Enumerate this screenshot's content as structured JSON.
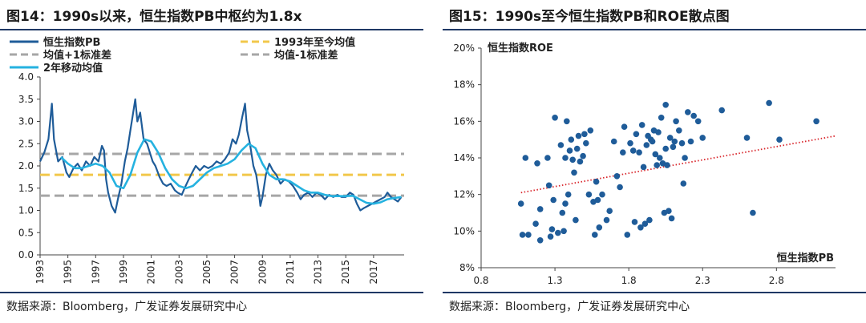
{
  "left": {
    "title": "图14：1990s以来，恒生指数PB中枢约为1.8x",
    "source": "数据来源：Bloomberg，广发证券发展研究中心"
  },
  "right": {
    "title": "图15：1990s至今恒生指数PB和ROE散点图",
    "source": "数据来源：Bloomberg，广发证券发展研究中心"
  },
  "colors": {
    "pb_line": "#1f5c99",
    "avg_line": "#f2c84b",
    "std_lines": "#a6a6a6",
    "ma_line": "#25b2e0",
    "scatter_point": "#1f5c99",
    "trendline": "#d9262c",
    "rule": "#1f3864"
  },
  "chart_data": [
    {
      "type": "line",
      "legend": [
        "恒生指数PB",
        "1993年至今均值",
        "均值+1标准差",
        "均值-1标准差",
        "2年移动均值"
      ],
      "legend_placement": "top-left",
      "ylim": [
        0.0,
        4.0
      ],
      "yticks": [
        "0.0",
        "0.5",
        "1.0",
        "1.5",
        "2.0",
        "2.5",
        "3.0",
        "3.5",
        "4.0"
      ],
      "xlim": [
        1993.0,
        2019.2
      ],
      "xticks": [
        "1993",
        "1995",
        "1997",
        "1999",
        "2001",
        "2003",
        "2005",
        "2007",
        "2009",
        "2011",
        "2013",
        "2015",
        "2017"
      ],
      "grid": false,
      "series": [
        {
          "name": "恒生指数PB",
          "points": [
            [
              1993.0,
              2.1
            ],
            [
              1993.3,
              2.3
            ],
            [
              1993.6,
              2.6
            ],
            [
              1993.85,
              3.4
            ],
            [
              1994.0,
              2.6
            ],
            [
              1994.3,
              2.1
            ],
            [
              1994.6,
              2.2
            ],
            [
              1994.9,
              1.85
            ],
            [
              1995.1,
              1.75
            ],
            [
              1995.4,
              1.95
            ],
            [
              1995.7,
              2.05
            ],
            [
              1996.0,
              1.9
            ],
            [
              1996.3,
              2.1
            ],
            [
              1996.6,
              2.0
            ],
            [
              1996.9,
              2.2
            ],
            [
              1997.2,
              2.1
            ],
            [
              1997.45,
              2.45
            ],
            [
              1997.6,
              2.35
            ],
            [
              1997.75,
              1.7
            ],
            [
              1997.9,
              1.4
            ],
            [
              1998.15,
              1.1
            ],
            [
              1998.4,
              0.95
            ],
            [
              1998.6,
              1.25
            ],
            [
              1998.85,
              1.6
            ],
            [
              1999.1,
              2.1
            ],
            [
              1999.3,
              2.4
            ],
            [
              1999.5,
              2.8
            ],
            [
              1999.7,
              3.2
            ],
            [
              1999.85,
              3.5
            ],
            [
              2000.0,
              3.0
            ],
            [
              2000.2,
              3.2
            ],
            [
              2000.45,
              2.6
            ],
            [
              2000.7,
              2.5
            ],
            [
              2000.9,
              2.3
            ],
            [
              2001.1,
              2.1
            ],
            [
              2001.3,
              2.0
            ],
            [
              2001.6,
              1.75
            ],
            [
              2001.85,
              1.6
            ],
            [
              2002.1,
              1.55
            ],
            [
              2002.4,
              1.6
            ],
            [
              2002.7,
              1.45
            ],
            [
              2002.9,
              1.4
            ],
            [
              2003.2,
              1.35
            ],
            [
              2003.4,
              1.5
            ],
            [
              2003.7,
              1.7
            ],
            [
              2003.95,
              1.85
            ],
            [
              2004.2,
              2.0
            ],
            [
              2004.5,
              1.9
            ],
            [
              2004.8,
              2.0
            ],
            [
              2005.1,
              1.95
            ],
            [
              2005.4,
              2.0
            ],
            [
              2005.7,
              2.1
            ],
            [
              2006.0,
              2.05
            ],
            [
              2006.3,
              2.15
            ],
            [
              2006.6,
              2.3
            ],
            [
              2006.85,
              2.6
            ],
            [
              2007.1,
              2.5
            ],
            [
              2007.3,
              2.7
            ],
            [
              2007.55,
              3.1
            ],
            [
              2007.75,
              3.4
            ],
            [
              2007.9,
              2.8
            ],
            [
              2008.1,
              2.5
            ],
            [
              2008.35,
              2.0
            ],
            [
              2008.55,
              1.8
            ],
            [
              2008.75,
              1.4
            ],
            [
              2008.85,
              1.1
            ],
            [
              2009.0,
              1.3
            ],
            [
              2009.25,
              1.8
            ],
            [
              2009.5,
              2.05
            ],
            [
              2009.75,
              1.9
            ],
            [
              2010.0,
              1.8
            ],
            [
              2010.3,
              1.6
            ],
            [
              2010.6,
              1.7
            ],
            [
              2010.9,
              1.65
            ],
            [
              2011.2,
              1.55
            ],
            [
              2011.5,
              1.4
            ],
            [
              2011.75,
              1.25
            ],
            [
              2012.0,
              1.35
            ],
            [
              2012.3,
              1.4
            ],
            [
              2012.6,
              1.3
            ],
            [
              2012.9,
              1.4
            ],
            [
              2013.2,
              1.35
            ],
            [
              2013.5,
              1.25
            ],
            [
              2013.8,
              1.35
            ],
            [
              2014.1,
              1.3
            ],
            [
              2014.4,
              1.35
            ],
            [
              2014.7,
              1.3
            ],
            [
              2015.0,
              1.3
            ],
            [
              2015.3,
              1.4
            ],
            [
              2015.55,
              1.35
            ],
            [
              2015.8,
              1.15
            ],
            [
              2016.05,
              1.0
            ],
            [
              2016.3,
              1.05
            ],
            [
              2016.6,
              1.1
            ],
            [
              2016.9,
              1.15
            ],
            [
              2017.2,
              1.2
            ],
            [
              2017.5,
              1.25
            ],
            [
              2017.8,
              1.3
            ],
            [
              2018.0,
              1.4
            ],
            [
              2018.25,
              1.3
            ],
            [
              2018.5,
              1.25
            ],
            [
              2018.75,
              1.2
            ],
            [
              2019.0,
              1.3
            ]
          ]
        },
        {
          "name": "1993年至今均值",
          "value": 1.8
        },
        {
          "name": "均值+1标准差",
          "value": 2.27
        },
        {
          "name": "均值-1标准差",
          "value": 1.33
        },
        {
          "name": "2年移动均值",
          "points": [
            [
              1994.5,
              2.2
            ],
            [
              1995.0,
              2.05
            ],
            [
              1995.5,
              1.95
            ],
            [
              1996.0,
              1.95
            ],
            [
              1996.5,
              2.0
            ],
            [
              1997.0,
              2.05
            ],
            [
              1997.5,
              2.0
            ],
            [
              1998.0,
              1.85
            ],
            [
              1998.5,
              1.55
            ],
            [
              1999.0,
              1.5
            ],
            [
              1999.5,
              1.8
            ],
            [
              2000.0,
              2.3
            ],
            [
              2000.5,
              2.6
            ],
            [
              2001.0,
              2.55
            ],
            [
              2001.5,
              2.3
            ],
            [
              2002.0,
              1.95
            ],
            [
              2002.5,
              1.7
            ],
            [
              2003.0,
              1.55
            ],
            [
              2003.5,
              1.5
            ],
            [
              2004.0,
              1.55
            ],
            [
              2004.5,
              1.7
            ],
            [
              2005.0,
              1.85
            ],
            [
              2005.5,
              1.95
            ],
            [
              2006.0,
              2.0
            ],
            [
              2006.5,
              2.05
            ],
            [
              2007.0,
              2.15
            ],
            [
              2007.5,
              2.35
            ],
            [
              2008.0,
              2.5
            ],
            [
              2008.5,
              2.4
            ],
            [
              2009.0,
              2.05
            ],
            [
              2009.5,
              1.8
            ],
            [
              2010.0,
              1.7
            ],
            [
              2010.5,
              1.7
            ],
            [
              2011.0,
              1.65
            ],
            [
              2011.5,
              1.55
            ],
            [
              2012.0,
              1.45
            ],
            [
              2012.5,
              1.4
            ],
            [
              2013.0,
              1.4
            ],
            [
              2013.5,
              1.35
            ],
            [
              2014.0,
              1.32
            ],
            [
              2014.5,
              1.32
            ],
            [
              2015.0,
              1.32
            ],
            [
              2015.5,
              1.33
            ],
            [
              2016.0,
              1.25
            ],
            [
              2016.5,
              1.17
            ],
            [
              2017.0,
              1.15
            ],
            [
              2017.5,
              1.18
            ],
            [
              2018.0,
              1.25
            ],
            [
              2018.5,
              1.28
            ],
            [
              2019.0,
              1.3
            ]
          ]
        }
      ]
    },
    {
      "type": "scatter",
      "ylabel": "恒生指数ROE",
      "xlabel": "恒生指数PB",
      "xlim": [
        0.8,
        3.2
      ],
      "ylim": [
        0.08,
        0.2
      ],
      "xticks": [
        "0.8",
        "1.3",
        "1.8",
        "2.3",
        "2.8"
      ],
      "yticks": [
        "8%",
        "10%",
        "12%",
        "14%",
        "16%",
        "18%",
        "20%"
      ],
      "grid": false,
      "trendline": {
        "style": "dotted",
        "from": [
          1.07,
          0.121
        ],
        "to": [
          3.2,
          0.152
        ]
      },
      "points": [
        [
          1.07,
          0.115
        ],
        [
          1.08,
          0.098
        ],
        [
          1.1,
          0.14
        ],
        [
          1.12,
          0.098
        ],
        [
          1.17,
          0.104
        ],
        [
          1.18,
          0.137
        ],
        [
          1.2,
          0.095
        ],
        [
          1.2,
          0.112
        ],
        [
          1.25,
          0.14
        ],
        [
          1.26,
          0.125
        ],
        [
          1.27,
          0.097
        ],
        [
          1.28,
          0.101
        ],
        [
          1.29,
          0.117
        ],
        [
          1.3,
          0.162
        ],
        [
          1.32,
          0.099
        ],
        [
          1.34,
          0.147
        ],
        [
          1.35,
          0.11
        ],
        [
          1.36,
          0.1
        ],
        [
          1.37,
          0.14
        ],
        [
          1.37,
          0.115
        ],
        [
          1.38,
          0.16
        ],
        [
          1.39,
          0.12
        ],
        [
          1.4,
          0.144
        ],
        [
          1.41,
          0.15
        ],
        [
          1.42,
          0.139
        ],
        [
          1.43,
          0.132
        ],
        [
          1.44,
          0.106
        ],
        [
          1.45,
          0.145
        ],
        [
          1.46,
          0.152
        ],
        [
          1.47,
          0.138
        ],
        [
          1.49,
          0.141
        ],
        [
          1.5,
          0.153
        ],
        [
          1.51,
          0.148
        ],
        [
          1.53,
          0.12
        ],
        [
          1.54,
          0.155
        ],
        [
          1.56,
          0.116
        ],
        [
          1.57,
          0.098
        ],
        [
          1.58,
          0.127
        ],
        [
          1.59,
          0.117
        ],
        [
          1.6,
          0.102
        ],
        [
          1.62,
          0.12
        ],
        [
          1.65,
          0.106
        ],
        [
          1.67,
          0.111
        ],
        [
          1.7,
          0.149
        ],
        [
          1.72,
          0.13
        ],
        [
          1.74,
          0.124
        ],
        [
          1.76,
          0.143
        ],
        [
          1.77,
          0.157
        ],
        [
          1.79,
          0.098
        ],
        [
          1.81,
          0.148
        ],
        [
          1.83,
          0.144
        ],
        [
          1.84,
          0.105
        ],
        [
          1.85,
          0.153
        ],
        [
          1.87,
          0.143
        ],
        [
          1.88,
          0.102
        ],
        [
          1.89,
          0.158
        ],
        [
          1.9,
          0.135
        ],
        [
          1.91,
          0.104
        ],
        [
          1.92,
          0.147
        ],
        [
          1.93,
          0.152
        ],
        [
          1.94,
          0.106
        ],
        [
          1.95,
          0.15
        ],
        [
          1.96,
          0.149
        ],
        [
          1.97,
          0.155
        ],
        [
          1.98,
          0.142
        ],
        [
          1.99,
          0.136
        ],
        [
          2.0,
          0.154
        ],
        [
          2.01,
          0.14
        ],
        [
          2.02,
          0.162
        ],
        [
          2.03,
          0.137
        ],
        [
          2.04,
          0.11
        ],
        [
          2.05,
          0.169
        ],
        [
          2.05,
          0.145
        ],
        [
          2.06,
          0.136
        ],
        [
          2.07,
          0.111
        ],
        [
          2.08,
          0.151
        ],
        [
          2.09,
          0.107
        ],
        [
          2.1,
          0.146
        ],
        [
          2.11,
          0.149
        ],
        [
          2.12,
          0.16
        ],
        [
          2.14,
          0.155
        ],
        [
          2.16,
          0.148
        ],
        [
          2.17,
          0.126
        ],
        [
          2.18,
          0.14
        ],
        [
          2.2,
          0.165
        ],
        [
          2.22,
          0.149
        ],
        [
          2.24,
          0.163
        ],
        [
          2.27,
          0.16
        ],
        [
          2.3,
          0.151
        ],
        [
          2.43,
          0.166
        ],
        [
          2.6,
          0.151
        ],
        [
          2.64,
          0.11
        ],
        [
          2.75,
          0.17
        ],
        [
          2.82,
          0.15
        ],
        [
          3.07,
          0.16
        ]
      ]
    }
  ]
}
